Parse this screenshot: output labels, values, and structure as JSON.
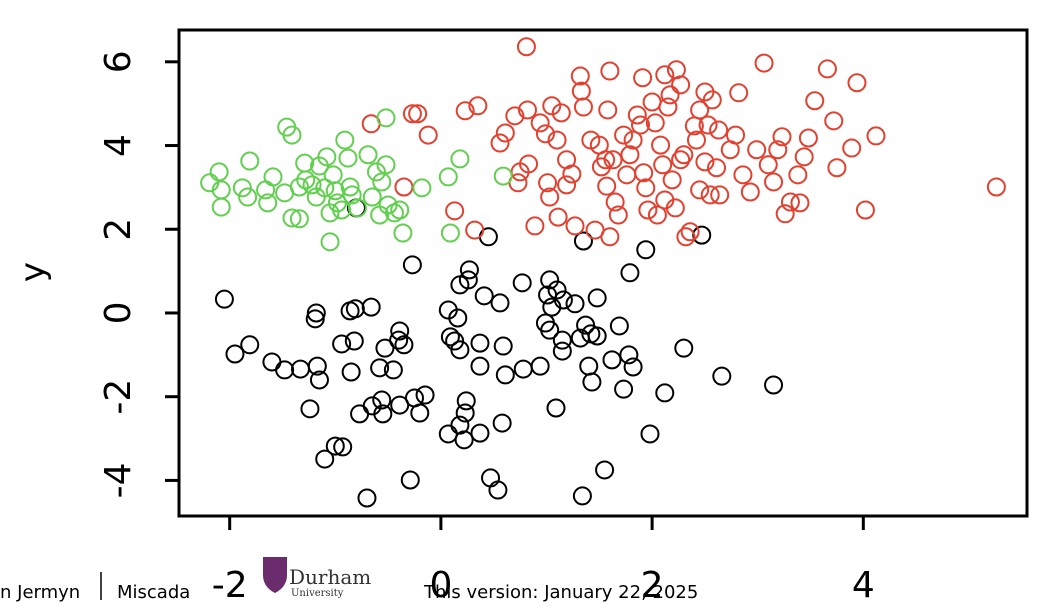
{
  "chart_data": {
    "type": "scatter",
    "y_label": "y",
    "xlim": [
      -2.48,
      5.55
    ],
    "ylim": [
      -4.85,
      6.76
    ],
    "xticks": [
      -2,
      0,
      2,
      4
    ],
    "yticks": [
      -4,
      -2,
      0,
      2,
      4,
      6
    ],
    "marker": "open-circle",
    "series": [
      {
        "color": "#000000",
        "x": [
          -2.05,
          -1.95,
          -1.81,
          -1.6,
          -1.48,
          -1.33,
          -1.18,
          -1.19,
          -1.17,
          -1.15,
          -1.24,
          -1.1,
          -1.0,
          -0.93,
          -0.94,
          -0.86,
          -0.81,
          -0.82,
          -0.85,
          -0.8,
          -0.77,
          -0.7,
          -0.66,
          -0.65,
          -0.58,
          -0.55,
          -0.53,
          -0.56,
          -0.45,
          -0.39,
          -0.4,
          -0.35,
          -0.39,
          -0.29,
          -0.27,
          -0.25,
          -0.15,
          -0.2,
          0.07,
          0.09,
          0.07,
          0.16,
          0.18,
          0.13,
          0.18,
          0.18,
          0.23,
          0.24,
          0.22,
          0.27,
          0.26,
          0.37,
          0.37,
          0.37,
          0.41,
          0.45,
          0.47,
          0.54,
          0.56,
          0.58,
          0.59,
          0.61,
          0.77,
          0.78,
          0.94,
          0.99,
          1.03,
          1.01,
          1.03,
          1.05,
          1.09,
          1.1,
          1.16,
          1.15,
          1.15,
          1.27,
          1.32,
          1.35,
          1.37,
          1.34,
          1.4,
          1.42,
          1.43,
          1.48,
          1.48,
          1.55,
          1.62,
          1.69,
          1.73,
          1.78,
          1.79,
          1.82,
          1.94,
          1.98,
          2.12,
          2.3,
          2.47,
          2.66,
          3.15
        ],
        "values": [
          0.33,
          -0.98,
          -0.76,
          -1.17,
          -1.36,
          -1.34,
          0.0,
          -0.14,
          -1.27,
          -1.6,
          -2.29,
          -3.49,
          -3.18,
          -3.2,
          -0.74,
          0.05,
          0.1,
          -0.67,
          -1.41,
          2.51,
          -2.41,
          -4.42,
          0.14,
          -2.22,
          -1.31,
          -2.41,
          -0.84,
          -2.08,
          -1.36,
          -0.43,
          -0.65,
          -0.76,
          -2.2,
          -3.99,
          1.15,
          -2.03,
          -1.96,
          -2.39,
          0.07,
          -0.57,
          -2.89,
          -0.12,
          0.67,
          -0.67,
          -0.88,
          -2.68,
          -2.39,
          -2.1,
          -3.03,
          1.03,
          0.79,
          -0.72,
          -1.27,
          -2.87,
          0.41,
          1.82,
          -3.94,
          -4.23,
          0.24,
          -2.63,
          -0.79,
          -1.48,
          0.72,
          -1.34,
          -1.27,
          -0.24,
          0.79,
          0.43,
          -0.41,
          0.14,
          -2.27,
          0.55,
          0.31,
          -0.91,
          -0.65,
          0.22,
          -0.6,
          1.72,
          -0.29,
          -4.37,
          -1.27,
          -0.5,
          -1.65,
          0.36,
          -0.55,
          -3.75,
          -1.12,
          -0.31,
          -1.82,
          -1.0,
          0.96,
          -1.29,
          1.51,
          -2.89,
          -1.91,
          -0.84,
          1.86,
          -1.51,
          -1.72
        ]
      },
      {
        "color": "#e4402f",
        "x": [
          -0.66,
          -0.35,
          -0.27,
          -0.22,
          -0.12,
          0.13,
          0.23,
          0.35,
          0.32,
          0.56,
          0.61,
          0.7,
          0.73,
          0.75,
          0.81,
          0.83,
          0.82,
          0.94,
          0.89,
          0.99,
          1.01,
          1.03,
          1.05,
          1.1,
          1.11,
          1.14,
          1.19,
          1.19,
          1.24,
          1.27,
          1.32,
          1.33,
          1.35,
          1.42,
          1.46,
          1.5,
          1.52,
          1.56,
          1.57,
          1.58,
          1.6,
          1.6,
          1.63,
          1.65,
          1.68,
          1.73,
          1.76,
          1.79,
          1.82,
          1.86,
          1.89,
          1.91,
          1.92,
          1.94,
          1.96,
          2.0,
          2.03,
          2.05,
          2.08,
          2.1,
          2.12,
          2.12,
          2.15,
          2.17,
          2.19,
          2.22,
          2.23,
          2.27,
          2.27,
          2.3,
          2.32,
          2.36,
          2.4,
          2.42,
          2.45,
          2.45,
          2.5,
          2.5,
          2.53,
          2.55,
          2.57,
          2.61,
          2.63,
          2.64,
          2.74,
          2.79,
          2.82,
          2.86,
          2.93,
          2.99,
          3.06,
          3.1,
          3.15,
          3.19,
          3.23,
          3.26,
          3.31,
          3.38,
          3.4,
          3.44,
          3.48,
          3.54,
          3.66,
          3.72,
          3.75,
          3.89,
          3.94,
          4.02,
          4.12,
          5.26
        ],
        "values": [
          4.52,
          3.01,
          4.76,
          4.76,
          4.25,
          2.44,
          4.83,
          4.95,
          1.98,
          4.06,
          4.3,
          4.71,
          3.11,
          3.37,
          6.36,
          3.56,
          4.85,
          4.54,
          2.08,
          4.28,
          3.11,
          2.77,
          4.95,
          4.13,
          2.29,
          4.78,
          3.66,
          3.06,
          3.32,
          2.08,
          5.66,
          5.3,
          4.92,
          4.13,
          1.98,
          4.01,
          3.49,
          3.66,
          3.03,
          4.85,
          5.78,
          1.82,
          3.66,
          2.65,
          2.34,
          4.25,
          3.3,
          3.78,
          4.13,
          4.73,
          4.49,
          5.62,
          3.35,
          2.99,
          2.46,
          5.04,
          4.54,
          2.34,
          4.01,
          3.54,
          5.69,
          2.7,
          4.92,
          5.21,
          3.18,
          2.51,
          5.81,
          5.45,
          3.66,
          3.78,
          1.82,
          1.94,
          4.47,
          4.13,
          4.85,
          2.94,
          3.61,
          5.28,
          4.49,
          2.82,
          5.09,
          3.47,
          4.37,
          2.82,
          3.9,
          4.25,
          5.26,
          3.3,
          2.89,
          3.9,
          5.97,
          3.54,
          3.13,
          3.9,
          4.21,
          2.37,
          2.65,
          3.3,
          2.63,
          3.73,
          4.18,
          5.07,
          5.83,
          4.59,
          3.47,
          3.94,
          5.5,
          2.46,
          4.23,
          3.01
        ]
      },
      {
        "color": "#61d04f",
        "x": [
          -2.19,
          -2.1,
          -2.08,
          -2.08,
          -1.88,
          -1.83,
          -1.81,
          -1.66,
          -1.64,
          -1.59,
          -1.48,
          -1.46,
          -1.41,
          -1.41,
          -1.34,
          -1.34,
          -1.29,
          -1.28,
          -1.22,
          -1.18,
          -1.15,
          -1.1,
          -1.08,
          -1.05,
          -1.05,
          -1.02,
          -1.0,
          -0.98,
          -0.94,
          -0.91,
          -0.88,
          -0.86,
          -0.84,
          -0.79,
          -0.69,
          -0.65,
          -0.61,
          -0.58,
          -0.56,
          -0.52,
          -0.52,
          -0.5,
          -0.44,
          -0.39,
          -0.36,
          -0.18,
          0.07,
          0.09,
          0.18,
          0.59
        ],
        "values": [
          3.11,
          3.37,
          2.94,
          2.53,
          2.99,
          2.77,
          3.63,
          2.94,
          2.63,
          3.25,
          2.87,
          4.44,
          4.25,
          2.27,
          2.25,
          3.01,
          3.58,
          3.18,
          3.06,
          2.77,
          3.51,
          2.99,
          3.73,
          1.7,
          2.39,
          3.3,
          2.92,
          2.63,
          2.46,
          4.13,
          3.7,
          3.01,
          2.82,
          2.51,
          3.78,
          2.77,
          3.37,
          2.34,
          3.13,
          4.66,
          3.54,
          2.58,
          2.39,
          2.46,
          1.91,
          2.99,
          3.25,
          1.91,
          3.68,
          3.27
        ]
      }
    ]
  },
  "footer": {
    "author": "n Jermyn",
    "course": "Miscada",
    "logo_top": "Durham",
    "logo_bottom": "University",
    "version": "This version: January 22, 2025"
  }
}
